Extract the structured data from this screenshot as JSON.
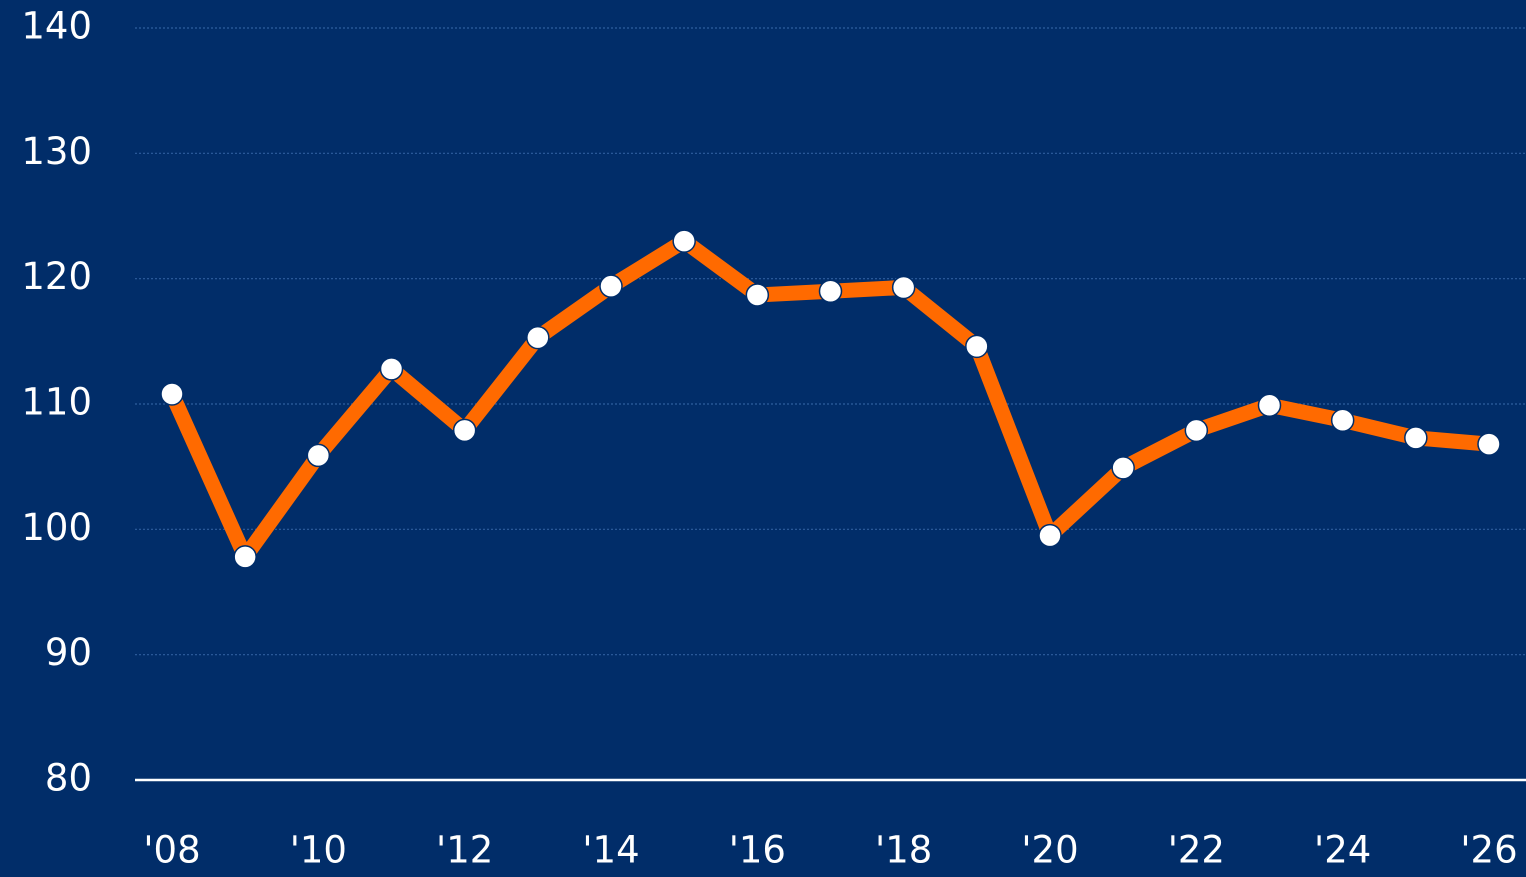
{
  "chart_data": {
    "type": "line",
    "categories": [
      "'08",
      null,
      "'10",
      null,
      "'12",
      null,
      "'14",
      null,
      "'16",
      null,
      "'18",
      null,
      "'20",
      null,
      "'22",
      null,
      "'24",
      null,
      "'26"
    ],
    "series": [
      {
        "color": "#ff6a00",
        "values": [
          110.8,
          97.8,
          105.9,
          112.8,
          107.9,
          115.3,
          119.4,
          123.0,
          118.7,
          119.0,
          119.3,
          114.6,
          99.5,
          104.9,
          107.9,
          109.9,
          108.7,
          107.3,
          106.8
        ]
      }
    ],
    "ylim": [
      80,
      140
    ],
    "yticks": [
      80,
      90,
      100,
      110,
      120,
      130,
      140
    ],
    "grid": true
  }
}
